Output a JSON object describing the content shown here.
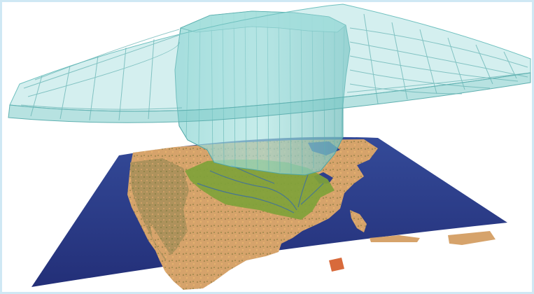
{
  "colors": {
    "ocean": "#2b3a86",
    "land_tan": "#d1a16a",
    "land_orange": "#e0a05e",
    "land_olive": "#8f8f48",
    "watershed_green": "#7fa23a",
    "river_blue": "#3e6fa0",
    "grid_cyan": "#8fd3d2",
    "grid_line": "#5fb0b0",
    "column_cyan": "#7cc8c6",
    "frame_border": "#cfe8f4"
  },
  "icons": {
    "grid": "atmospheric-model-grid",
    "column": "watershed-extrusion-column",
    "basemap": "north-america-relief-map"
  }
}
